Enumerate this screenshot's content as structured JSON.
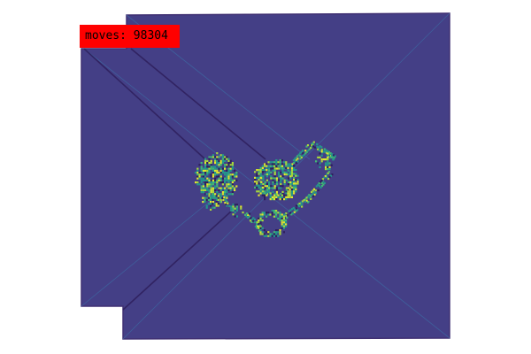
{
  "hud": {
    "moves_label": "moves: 98304"
  },
  "palette": {
    "background": "#443f86",
    "edge": "#403173",
    "diagonal": "#3d6aa3",
    "trail_dark": "#2e1f5c",
    "trail_teal": "#23978b",
    "trail_green": "#41b873",
    "trail_yellow": "#e2e62e",
    "trail_lime": "#a8d93b",
    "hud_bg": "#ff0000",
    "hud_text": "#000000"
  }
}
